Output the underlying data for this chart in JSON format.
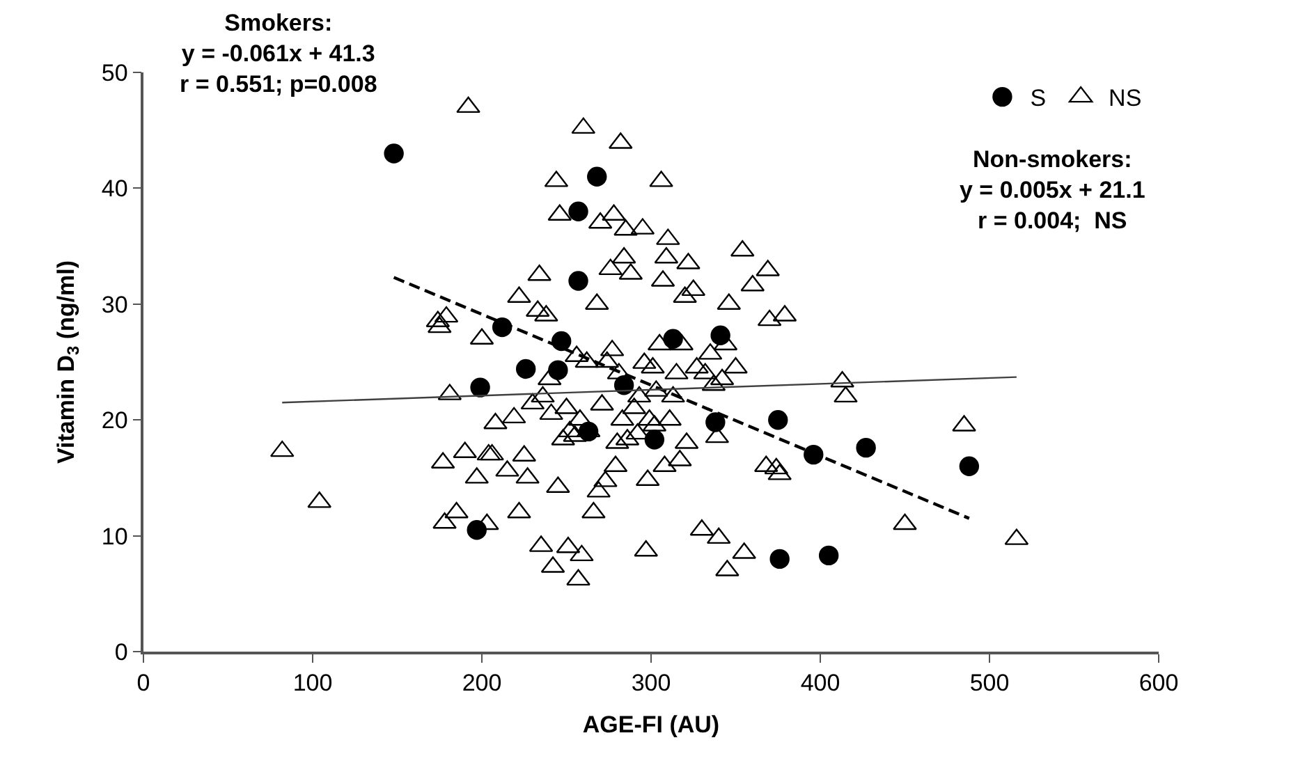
{
  "chart_data": {
    "type": "scatter",
    "xlabel": "AGE-FI (AU)",
    "ylabel": "Vitamin D$_{3}$ (ng/ml)",
    "xlim": [
      0,
      600
    ],
    "xticks": [
      0,
      100,
      200,
      300,
      400,
      500,
      600
    ],
    "ylim": [
      0,
      50
    ],
    "yticks": [
      0,
      10,
      20,
      30,
      40,
      50
    ],
    "legend": "top right",
    "series": [
      {
        "name": "S",
        "color": "#000000",
        "marker": "circle",
        "x": [
          148,
          197,
          199,
          212,
          226,
          245,
          247,
          257,
          257,
          263,
          268,
          284,
          302,
          313,
          338,
          341,
          375,
          376,
          396,
          405,
          427,
          488
        ],
        "values": [
          43,
          10.5,
          22.8,
          28,
          24.4,
          24.3,
          26.8,
          38,
          32,
          19,
          41,
          23,
          18.3,
          27,
          19.8,
          27.3,
          20,
          8,
          17,
          8.3,
          17.6,
          16
        ]
      },
      {
        "name": "NS",
        "color": "#000000",
        "marker": "triangle",
        "x": [
          82,
          104,
          174,
          175,
          177,
          178,
          179,
          181,
          185,
          190,
          192,
          197,
          200,
          203,
          204,
          206,
          208,
          215,
          219,
          222,
          222,
          225,
          227,
          230,
          233,
          234,
          235,
          236,
          238,
          240,
          241,
          242,
          244,
          245,
          246,
          248,
          250,
          251,
          252,
          255,
          256,
          257,
          258,
          259,
          260,
          262,
          263,
          266,
          268,
          269,
          270,
          271,
          273,
          274,
          276,
          277,
          278,
          279,
          280,
          281,
          282,
          283,
          284,
          285,
          286,
          288,
          290,
          292,
          293,
          295,
          296,
          297,
          298,
          299,
          301,
          302,
          303,
          305,
          306,
          307,
          308,
          309,
          310,
          311,
          313,
          315,
          317,
          318,
          320,
          321,
          322,
          325,
          327,
          330,
          332,
          335,
          337,
          339,
          340,
          342,
          344,
          345,
          346,
          350,
          354,
          355,
          360,
          368,
          369,
          370,
          374,
          376,
          379,
          413,
          415,
          450,
          485,
          516
        ],
        "values": [
          17.3,
          12.9,
          28.5,
          28,
          16.3,
          11.1,
          28.9,
          22.2,
          12,
          17.2,
          47,
          15,
          27,
          11,
          17,
          17,
          19.7,
          15.6,
          20.2,
          12,
          30.6,
          16.9,
          15,
          21.4,
          29.4,
          32.5,
          9.1,
          22,
          29,
          23.5,
          20.5,
          7.3,
          40.6,
          14.2,
          37.7,
          18.3,
          21,
          9,
          19,
          18.6,
          25.5,
          6.2,
          20,
          8.3,
          45.2,
          25,
          19,
          12,
          30,
          13.8,
          37,
          21.3,
          14.7,
          25,
          33,
          26,
          37.7,
          16,
          18,
          24,
          43.9,
          20,
          34,
          36.4,
          18.3,
          32.6,
          21,
          18.8,
          22,
          36.5,
          24.9,
          8.7,
          14.8,
          20,
          24.5,
          19.5,
          22.5,
          26.5,
          40.6,
          32,
          16,
          34,
          35.6,
          20,
          22,
          24,
          16.5,
          26.5,
          30.6,
          18,
          33.5,
          31.2,
          24.5,
          10.5,
          24,
          25.7,
          23,
          18.5,
          9.8,
          23.5,
          26.5,
          7,
          30,
          24.5,
          34.6,
          8.5,
          31.6,
          16,
          32.9,
          28.6,
          15.8,
          15.3,
          29,
          23.3,
          22,
          11,
          19.5,
          9.7
        ]
      },
      {
        "type": "line",
        "color": "#000000",
        "line_style": "dashed",
        "marker": "none",
        "x": [
          148,
          488
        ],
        "values": [
          32.3,
          11.5
        ]
      },
      {
        "type": "line",
        "color": "#404040",
        "line_style": "solid",
        "marker": "none",
        "x": [
          82,
          516
        ],
        "values": [
          21.5,
          23.7
        ]
      }
    ],
    "annotations": [
      "Smokers:\ny = -0.061x + 41.3\nr = 0.551; p=0.008",
      "Non-smokers:\ny = 0.005x + 21.1\nr = 0.004;  NS"
    ]
  }
}
